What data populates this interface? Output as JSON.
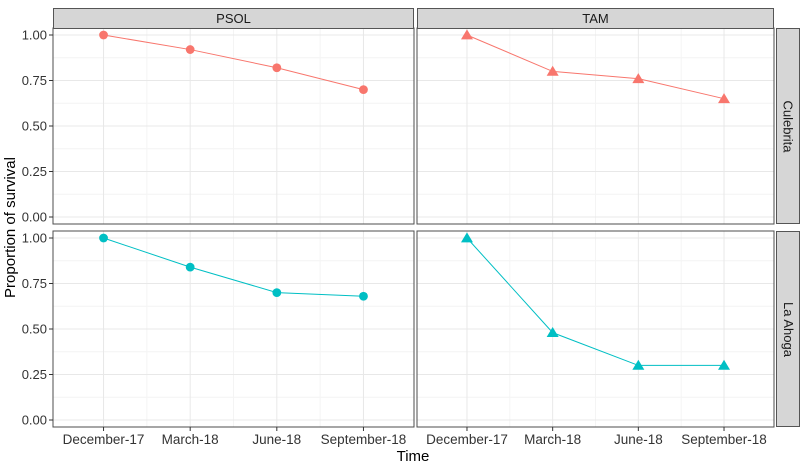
{
  "chart_data": {
    "type": "line",
    "title": "",
    "xlabel": "Time",
    "ylabel": "Proportion of survival",
    "x_categories": [
      "December-17",
      "March-18",
      "June-18",
      "September-18"
    ],
    "y_tick_labels": [
      "1.00",
      "0.75",
      "0.50",
      "0.25",
      "0.00"
    ],
    "y_tick_values": [
      1.0,
      0.75,
      0.5,
      0.25,
      0.0
    ],
    "ylim": [
      0,
      1
    ],
    "grid": true,
    "legend_position": "none",
    "facet": {
      "cols": [
        "PSOL",
        "TAM"
      ],
      "rows": [
        "Culebrita",
        "La Ahoga"
      ]
    },
    "series": [
      {
        "facet_col": "PSOL",
        "facet_row": "Culebrita",
        "marker": "circle",
        "color": "#F8766D",
        "values": [
          1.0,
          0.92,
          0.82,
          0.7
        ]
      },
      {
        "facet_col": "TAM",
        "facet_row": "Culebrita",
        "marker": "triangle",
        "color": "#F8766D",
        "values": [
          1.0,
          0.8,
          0.76,
          0.65
        ]
      },
      {
        "facet_col": "PSOL",
        "facet_row": "La Ahoga",
        "marker": "circle",
        "color": "#00BFC4",
        "values": [
          1.0,
          0.84,
          0.7,
          0.68
        ]
      },
      {
        "facet_col": "TAM",
        "facet_row": "La Ahoga",
        "marker": "triangle",
        "color": "#00BFC4",
        "values": [
          1.0,
          0.48,
          0.3,
          0.3
        ]
      }
    ]
  },
  "styles": {
    "strip_bg": "#d6d6d6",
    "strip_border": "#555555",
    "panel_border": "#4d4d4d",
    "panel_bg": "#ffffff",
    "grid_major": "#e8e8e8",
    "grid_minor": "#f4f4f4",
    "tick_color": "#333333",
    "tick_label_color": "#333333",
    "salmon": "#F8766D",
    "teal": "#00BFC4"
  }
}
